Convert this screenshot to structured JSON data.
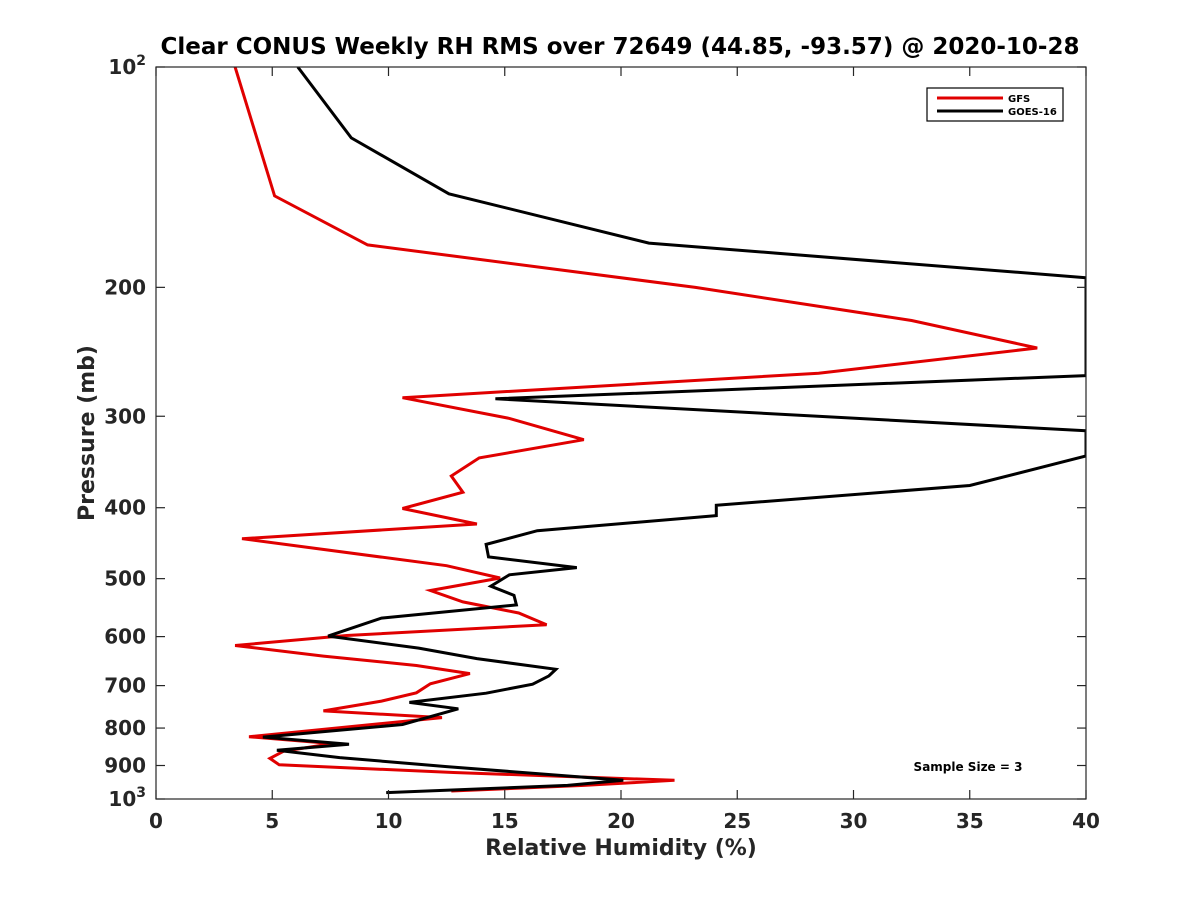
{
  "chart_data": {
    "type": "line",
    "title": "Clear CONUS Weekly RH RMS over 72649 (44.85, -93.57) @ 2020-10-28",
    "xlabel": "Relative Humidity (%)",
    "ylabel": "Pressure (mb)",
    "xlim": [
      0,
      40
    ],
    "ylim": [
      1000,
      100
    ],
    "yscale": "log",
    "y_reversed": true,
    "xticks": [
      "0",
      "5",
      "10",
      "15",
      "20",
      "25",
      "30",
      "35",
      "40"
    ],
    "yticks": [
      {
        "value": 100,
        "base": "10",
        "exp": "2"
      },
      {
        "value": 200,
        "label": "200"
      },
      {
        "value": 300,
        "label": "300"
      },
      {
        "value": 400,
        "label": "400"
      },
      {
        "value": 500,
        "label": "500"
      },
      {
        "value": 600,
        "label": "600"
      },
      {
        "value": 700,
        "label": "700"
      },
      {
        "value": 800,
        "label": "800"
      },
      {
        "value": 900,
        "label": "900"
      },
      {
        "value": 1000,
        "base": "10",
        "exp": "3"
      }
    ],
    "grid": false,
    "legend_position": "top-right",
    "annotation": "Sample Size = 3",
    "series": [
      {
        "name": "GFS",
        "color": "#e00000",
        "points": [
          [
            3.4,
            100
          ],
          [
            5.1,
            150
          ],
          [
            9.1,
            175
          ],
          [
            23.2,
            200
          ],
          [
            32.5,
            222
          ],
          [
            37.9,
            242
          ],
          [
            28.5,
            262
          ],
          [
            10.6,
            283
          ],
          [
            15.2,
            302
          ],
          [
            18.4,
            323
          ],
          [
            13.9,
            342
          ],
          [
            12.7,
            362
          ],
          [
            13.2,
            381
          ],
          [
            10.6,
            401
          ],
          [
            13.8,
            421
          ],
          [
            3.7,
            441
          ],
          [
            12.5,
            480
          ],
          [
            14.8,
            499
          ],
          [
            11.8,
            519
          ],
          [
            13.2,
            538
          ],
          [
            15.6,
            557
          ],
          [
            16.8,
            578
          ],
          [
            8.2,
            598
          ],
          [
            3.4,
            617
          ],
          [
            7.2,
            638
          ],
          [
            11.2,
            657
          ],
          [
            13.5,
            674
          ],
          [
            11.8,
            696
          ],
          [
            11.2,
            716
          ],
          [
            9.7,
            735
          ],
          [
            7.2,
            758
          ],
          [
            12.3,
            774
          ],
          [
            4.0,
            822
          ],
          [
            7.6,
            840
          ],
          [
            5.5,
            860
          ],
          [
            4.9,
            880
          ],
          [
            5.3,
            898
          ],
          [
            12.8,
            920
          ],
          [
            22.3,
            943
          ],
          [
            18.4,
            958
          ],
          [
            12.7,
            975
          ]
        ]
      },
      {
        "name": "GOES-16",
        "color": "#000000",
        "points": [
          [
            6.1,
            100
          ],
          [
            8.4,
            125
          ],
          [
            12.6,
            149
          ],
          [
            21.2,
            174
          ],
          [
            40.0,
            194
          ],
          [
            40.0,
            264
          ],
          [
            14.6,
            284
          ],
          [
            40.0,
            314
          ],
          [
            40.0,
            340
          ],
          [
            35.0,
            373
          ],
          [
            24.1,
            397
          ],
          [
            24.1,
            410
          ],
          [
            16.4,
            430
          ],
          [
            14.2,
            449
          ],
          [
            14.3,
            467
          ],
          [
            18.1,
            483
          ],
          [
            15.2,
            494
          ],
          [
            14.4,
            512
          ],
          [
            15.4,
            527
          ],
          [
            15.5,
            543
          ],
          [
            9.7,
            566
          ],
          [
            7.4,
            599
          ],
          [
            11.3,
            622
          ],
          [
            13.8,
            643
          ],
          [
            17.2,
            665
          ],
          [
            16.9,
            679
          ],
          [
            16.2,
            697
          ],
          [
            14.2,
            717
          ],
          [
            10.9,
            738
          ],
          [
            13.0,
            753
          ],
          [
            10.6,
            791
          ],
          [
            4.6,
            823
          ],
          [
            8.3,
            842
          ],
          [
            5.2,
            858
          ],
          [
            7.9,
            878
          ],
          [
            12.5,
            903
          ],
          [
            20.1,
            943
          ],
          [
            17.7,
            958
          ],
          [
            9.9,
            980
          ]
        ]
      }
    ]
  }
}
